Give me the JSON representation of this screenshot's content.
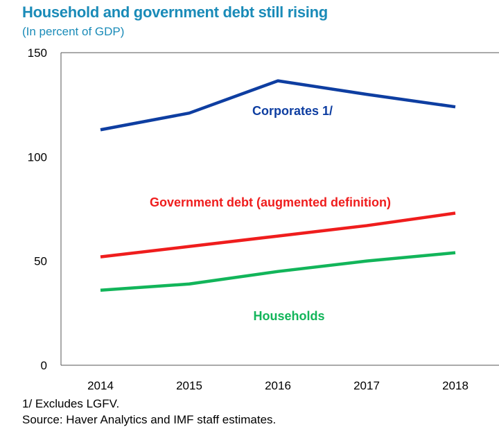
{
  "title": "Household and government debt still rising",
  "subtitle": "(In percent of GDP)",
  "chart_data": {
    "type": "line",
    "x": [
      "2014",
      "2015",
      "2016",
      "2017",
      "2018"
    ],
    "ylim": [
      0,
      150
    ],
    "yticks": [
      0,
      50,
      100,
      150
    ],
    "grid": false,
    "series": [
      {
        "name": "Corporates 1/",
        "color": "#0e3ea1",
        "values": [
          113,
          121,
          136.5,
          130,
          124
        ]
      },
      {
        "name": "Government debt (augmented definition)",
        "color": "#ef1d1d",
        "values": [
          52,
          57,
          62,
          67,
          73
        ]
      },
      {
        "name": "Households",
        "color": "#12b55a",
        "values": [
          36,
          39,
          45,
          50,
          54
        ]
      }
    ]
  },
  "footnote": "1/ Excludes LGFV.",
  "source": "Source: Haver Analytics and IMF staff estimates."
}
